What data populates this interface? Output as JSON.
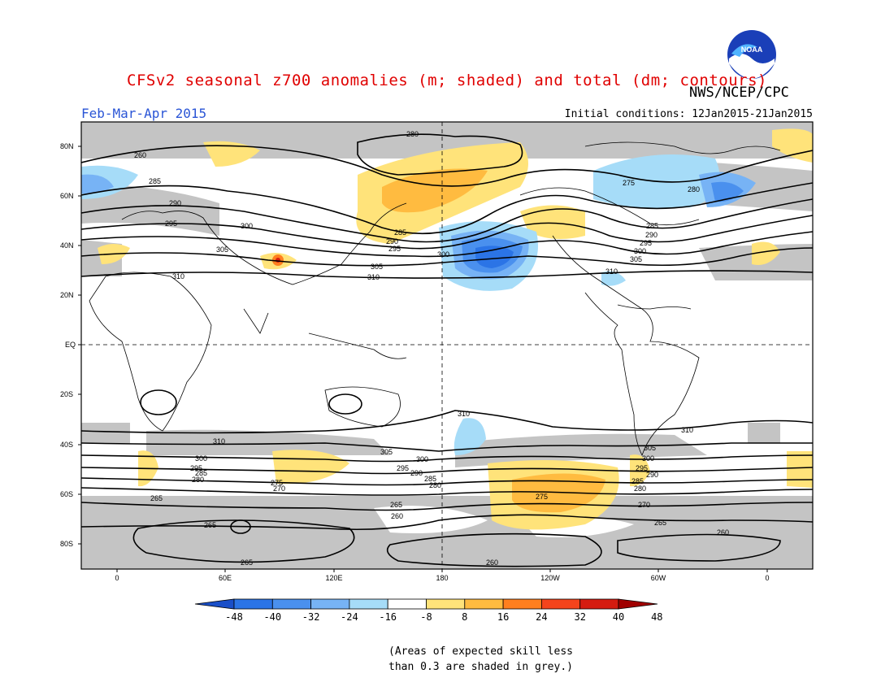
{
  "header": {
    "title": "CFSv2 seasonal z700 anomalies (m; shaded) and total (dm; contours)",
    "period": "Feb-Mar-Apr 2015",
    "agency": "NWS/NCEP/CPC",
    "initial_conditions": "Initial conditions: 12Jan2015-21Jan2015",
    "logo_text": "NOAA"
  },
  "map": {
    "lat_labels": [
      "80N",
      "60N",
      "40N",
      "20N",
      "EQ",
      "20S",
      "40S",
      "60S",
      "80S"
    ],
    "lon_labels": [
      "0",
      "60E",
      "120E",
      "180",
      "120W",
      "60W",
      "0"
    ],
    "contour_labels": {
      "c260a": "260",
      "c280a": "280",
      "c285a": "285",
      "c290a": "290",
      "c295a": "295",
      "c300a": "300",
      "c305a": "305",
      "c310a": "310",
      "c275a": "275",
      "c280b": "280",
      "c285b": "285",
      "c290b": "290",
      "c295b": "295",
      "c300b": "300",
      "c305b": "305",
      "c310b": "310",
      "c285c": "285",
      "c290c": "290",
      "c295c": "295",
      "c300c": "300",
      "c305c": "305",
      "c310c": "310",
      "c310d": "310",
      "c310e": "310",
      "c310f": "310",
      "c305d": "305",
      "c300d": "300",
      "c295d": "295",
      "c290d": "290",
      "c285d": "285",
      "c280d": "280",
      "c300e": "300",
      "c295e": "295",
      "c285e": "285",
      "c280e": "280",
      "c275b": "275",
      "c270a": "270",
      "c265a": "265",
      "c265b": "265",
      "c265c": "265",
      "c260b": "260",
      "c260c": "260",
      "c260d": "260",
      "c265d": "265",
      "c275c": "275",
      "c305e": "305",
      "c300f": "300",
      "c295f": "295",
      "c290e": "290",
      "c285f": "285",
      "c280f": "280",
      "c270b": "270"
    }
  },
  "colorbar": {
    "labels": [
      "-48",
      "-40",
      "-32",
      "-24",
      "-16",
      "-8",
      "8",
      "16",
      "24",
      "32",
      "40",
      "48"
    ],
    "colors": [
      "#1f5fd6",
      "#2b74e6",
      "#4a90ee",
      "#77b3f5",
      "#a6dcf8",
      "#ffffff",
      "#ffe37a",
      "#ffbb40",
      "#ff7f1e",
      "#f4441c",
      "#d51c10",
      "#b00000"
    ],
    "low_arrow_color": "#1a4fc8",
    "high_arrow_color": "#a00000"
  },
  "note": {
    "line1": "(Areas of expected skill less",
    "line2": "than 0.3 are shaded in grey.)"
  }
}
